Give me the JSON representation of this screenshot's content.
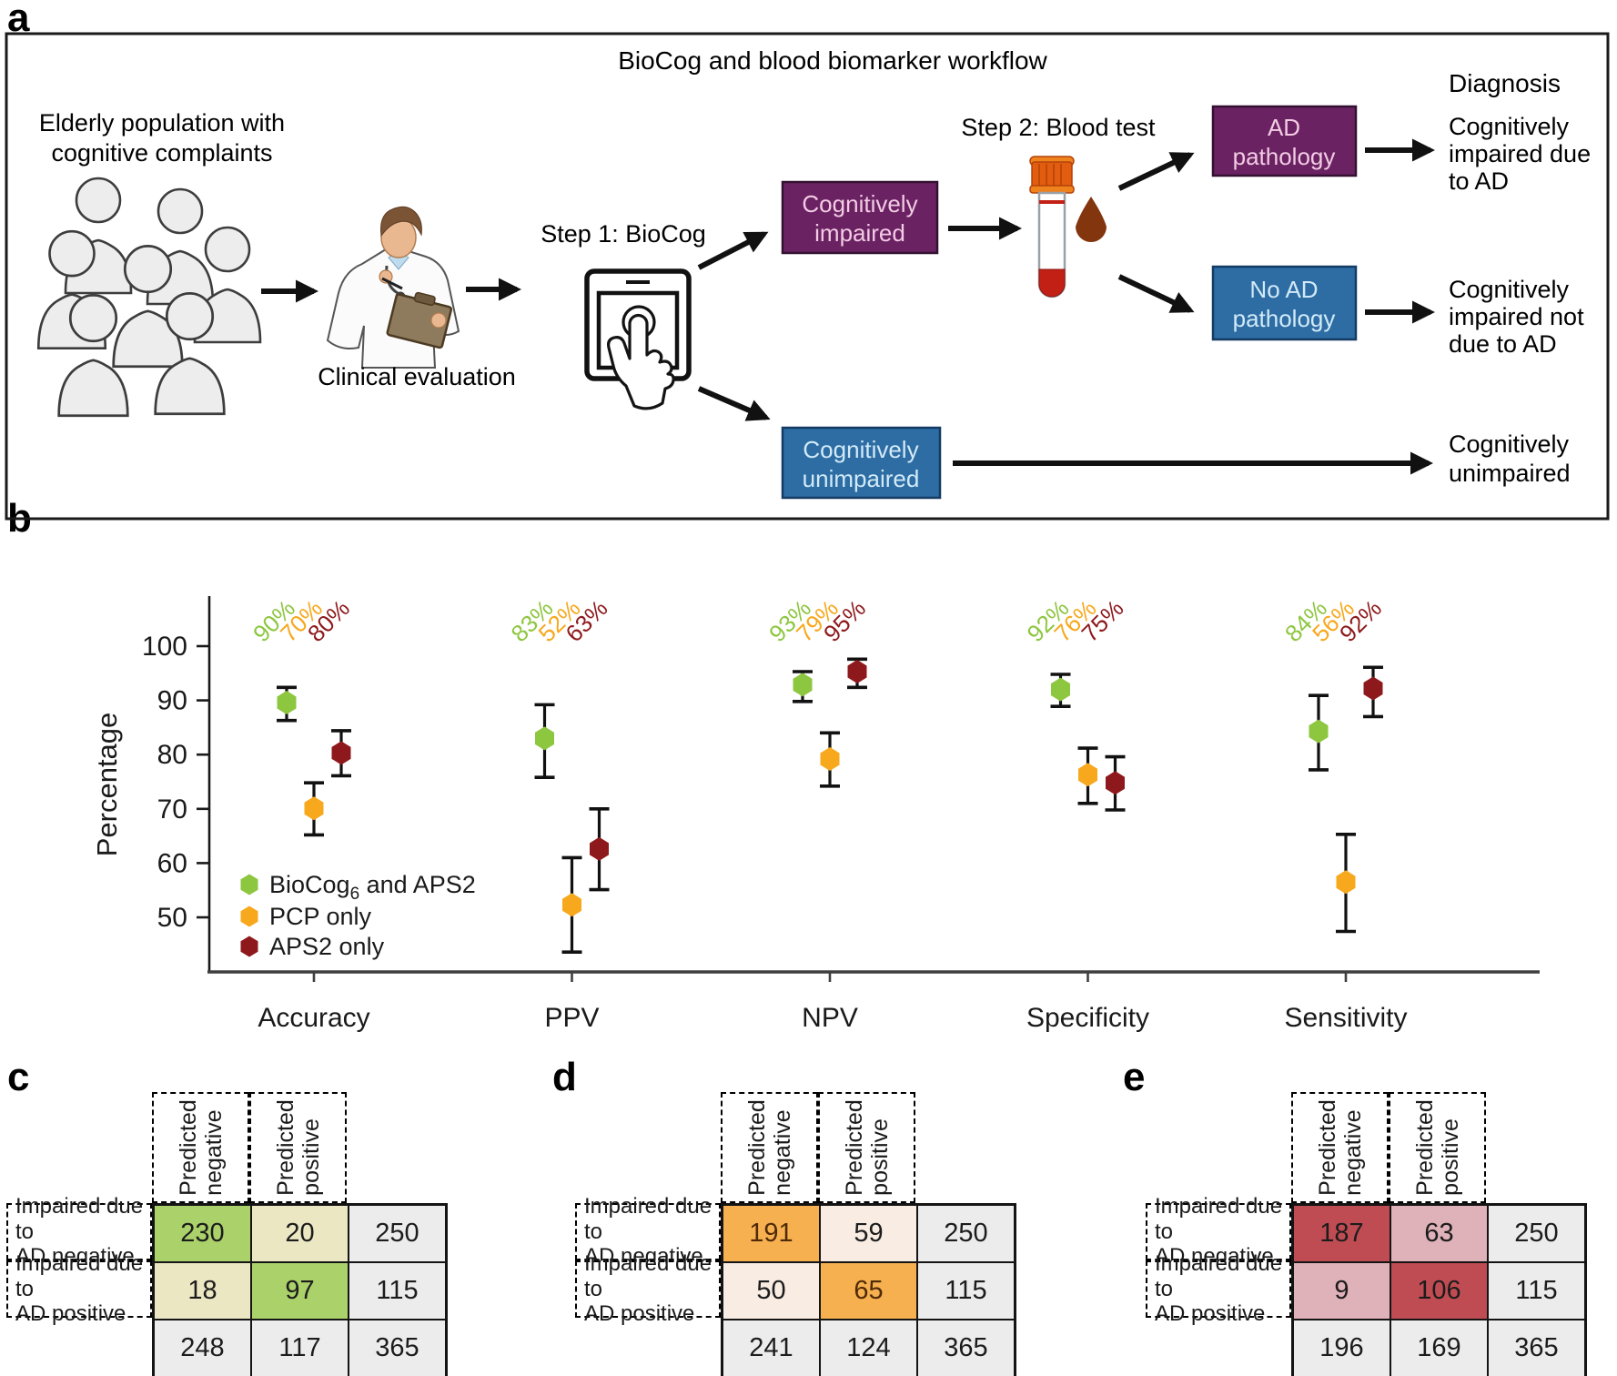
{
  "panel_a": {
    "label": "a",
    "title": "BioCog and blood biomarker workflow",
    "diagnosis_header": "Diagnosis",
    "population_label_lines": [
      "Elderly population with",
      "cognitive complaints"
    ],
    "clinical_evaluation_label": "Clinical evaluation",
    "step1_label": "Step 1: BioCog",
    "step2_label": "Step 2: Blood test",
    "boxes": {
      "cognitively_impaired": {
        "line1": "Cognitively",
        "line2": "impaired",
        "bg": "#6a2262",
        "text_color": "#f2cbe4"
      },
      "cognitively_unimpaired": {
        "line1": "Cognitively",
        "line2": "unimpaired",
        "bg": "#2d6da4",
        "text_color": "#d2eaf8"
      },
      "ad_pathology": {
        "line1": "AD",
        "line2": "pathology",
        "bg": "#6a2262",
        "text_color": "#f2cbe4"
      },
      "no_ad_pathology": {
        "line1": "No AD",
        "line2": "pathology",
        "bg": "#2d6da4",
        "text_color": "#d2eaf8"
      }
    },
    "outcomes": {
      "impaired_due_to_ad": {
        "line1": "Cognitively",
        "line2": "impaired due",
        "line3": "to AD"
      },
      "impaired_not_due_to_ad": {
        "line1": "Cognitively",
        "line2": "impaired not",
        "line3": "due to AD"
      },
      "unimpaired": {
        "line1": "Cognitively",
        "line2": "unimpaired"
      }
    }
  },
  "panel_b": {
    "label": "b"
  },
  "panel_c": {
    "label": "c"
  },
  "panel_d": {
    "label": "d"
  },
  "panel_e": {
    "label": "e"
  },
  "chart_data": [
    {
      "type": "scatter",
      "panel": "b",
      "title": "",
      "xlabel": "",
      "ylabel": "Percentage",
      "ylim": [
        40,
        109
      ],
      "yticks": [
        50,
        60,
        70,
        80,
        90,
        100
      ],
      "grid": false,
      "legend_position": "inside-bottom-left",
      "categories": [
        "Accuracy",
        "PPV",
        "NPV",
        "Specificity",
        "Sensitivity"
      ],
      "series": [
        {
          "name": "BioCog6 and APS2",
          "name_parts": {
            "pre": "BioCog",
            "sub": "6",
            "post": " and APS2"
          },
          "color": "#8dc63f",
          "values": [
            89.6,
            83.0,
            92.9,
            92.0,
            84.3
          ],
          "ci_low": [
            86.3,
            75.8,
            89.8,
            88.9,
            77.2
          ],
          "ci_high": [
            92.4,
            89.2,
            95.3,
            94.8,
            90.9
          ],
          "point_labels": [
            "90%",
            "83%",
            "93%",
            "92%",
            "84%"
          ]
        },
        {
          "name": "PCP only",
          "color": "#f7a81c",
          "values": [
            70.1,
            52.3,
            79.2,
            76.3,
            56.5
          ],
          "ci_low": [
            65.2,
            43.6,
            74.2,
            71.0,
            47.4
          ],
          "ci_high": [
            74.8,
            61.0,
            84.0,
            81.2,
            65.3
          ],
          "point_labels": [
            "70%",
            "52%",
            "79%",
            "76%",
            "56%"
          ]
        },
        {
          "name": "APS2 only",
          "color": "#8e191c",
          "values": [
            80.3,
            62.6,
            95.3,
            74.8,
            92.2
          ],
          "ci_low": [
            76.1,
            55.1,
            92.4,
            69.8,
            87.0
          ],
          "ci_high": [
            84.4,
            70.0,
            97.6,
            79.6,
            96.1
          ],
          "point_labels": [
            "80%",
            "63%",
            "95%",
            "75%",
            "92%"
          ]
        }
      ]
    },
    {
      "type": "table",
      "panel": "c",
      "col_headers": [
        [
          "Predicted",
          "negative"
        ],
        [
          "Predicted",
          "positive"
        ]
      ],
      "row_headers": [
        [
          "Impaired due to",
          "AD negative"
        ],
        [
          "Impaired due to",
          "AD positive"
        ]
      ],
      "cells": [
        [
          230,
          20,
          250
        ],
        [
          18,
          97,
          115
        ],
        [
          248,
          117,
          365
        ]
      ],
      "colors": {
        "diagonal": "#abd16a",
        "off_diagonal": "#ece7c3",
        "margin": "#ececec"
      },
      "number_color_diagonal": "#1c1c1c"
    },
    {
      "type": "table",
      "panel": "d",
      "col_headers": [
        [
          "Predicted",
          "negative"
        ],
        [
          "Predicted",
          "positive"
        ]
      ],
      "row_headers": [
        [
          "Impaired due to",
          "AD negative"
        ],
        [
          "Impaired due to",
          "AD positive"
        ]
      ],
      "cells": [
        [
          191,
          59,
          250
        ],
        [
          50,
          65,
          115
        ],
        [
          241,
          124,
          365
        ]
      ],
      "colors": {
        "diagonal": "#f6b050",
        "off_diagonal": "#f9ece3",
        "margin": "#ececec"
      },
      "number_color_diagonal": "#4f2a08"
    },
    {
      "type": "table",
      "panel": "e",
      "col_headers": [
        [
          "Predicted",
          "negative"
        ],
        [
          "Predicted",
          "positive"
        ]
      ],
      "row_headers": [
        [
          "Impaired due to",
          "AD negative"
        ],
        [
          "Impaired due to",
          "AD positive"
        ]
      ],
      "cells": [
        [
          187,
          63,
          250
        ],
        [
          9,
          106,
          115
        ],
        [
          196,
          169,
          365
        ]
      ],
      "colors": {
        "diagonal": "#bf4c53",
        "off_diagonal": "#dfb1b8",
        "margin": "#ececec"
      },
      "number_color_diagonal": "#1c1c1c"
    }
  ]
}
